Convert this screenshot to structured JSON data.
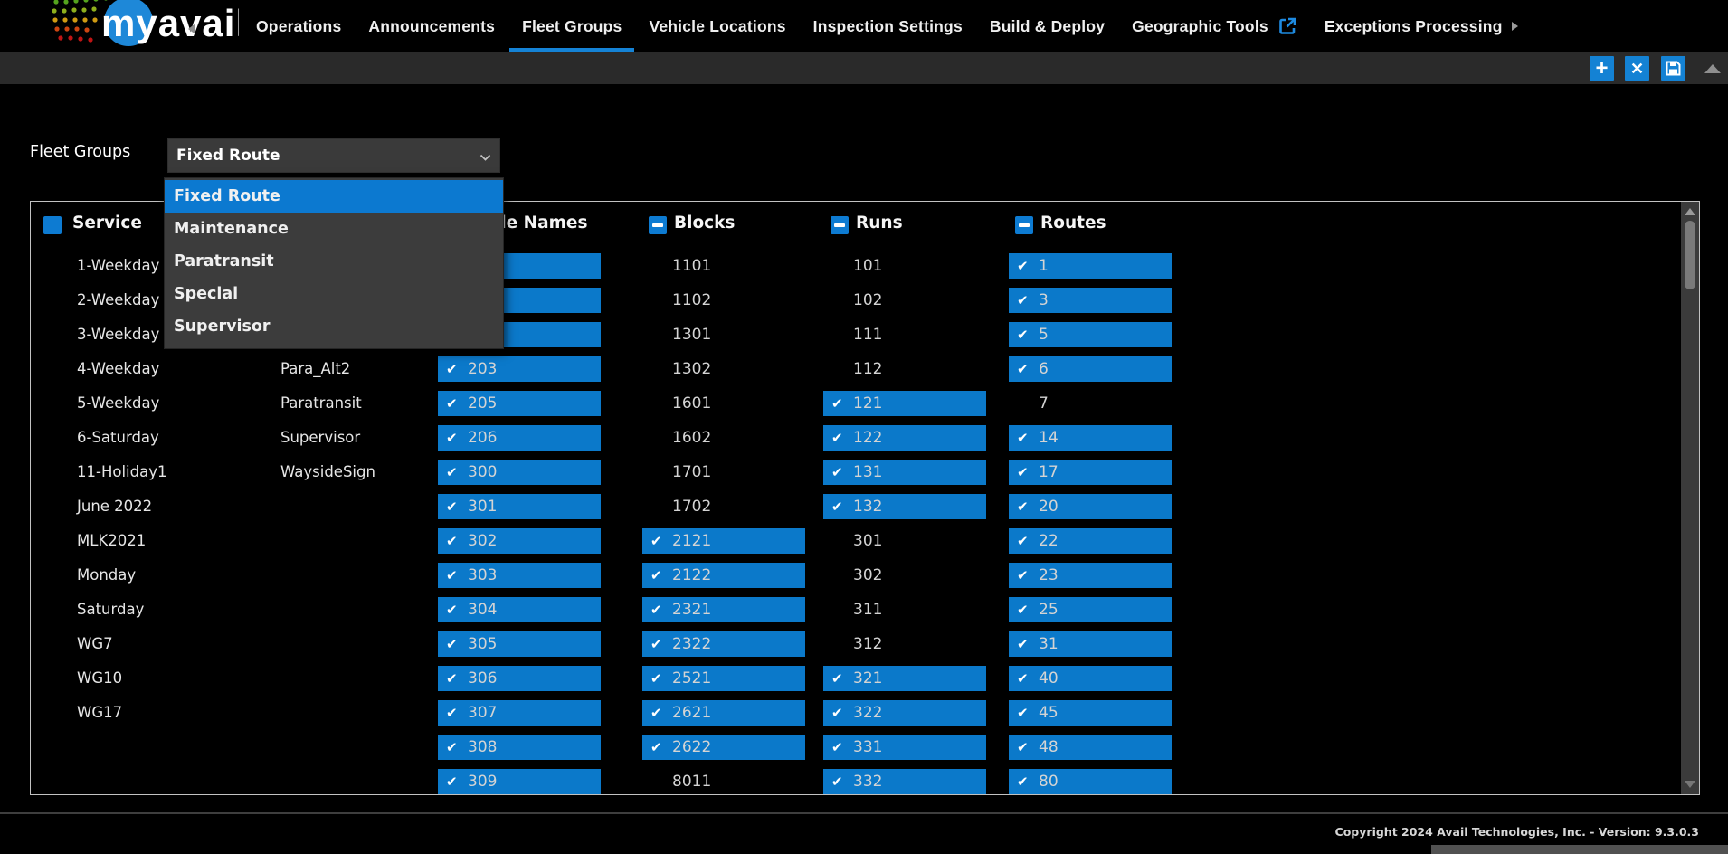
{
  "brand": {
    "logo_text": "myavail"
  },
  "nav": {
    "items": [
      {
        "label": "Operations"
      },
      {
        "label": "Announcements"
      },
      {
        "label": "Fleet Groups",
        "active": true
      },
      {
        "label": "Vehicle Locations"
      },
      {
        "label": "Inspection Settings"
      },
      {
        "label": "Build & Deploy"
      },
      {
        "label": "Geographic Tools",
        "external_link_icon": true
      },
      {
        "label": "Exceptions Processing",
        "submenu_arrow": true
      }
    ]
  },
  "toolbar": {
    "add_label": "+",
    "delete_label": "✕",
    "save_icon": "floppy-disk"
  },
  "fleet_groups": {
    "label": "Fleet Groups",
    "selected": "Fixed Route",
    "highlighted_option": "Fixed Route",
    "options": [
      "Fixed Route",
      "Maintenance",
      "Paratransit",
      "Special",
      "Supervisor"
    ]
  },
  "table": {
    "headers": [
      {
        "label": "Service",
        "checkbox": "checked"
      },
      {
        "label": "Vehicle Names",
        "checkbox": "checked"
      },
      {
        "label": "Blocks",
        "checkbox": "indeterminate"
      },
      {
        "label": "Runs",
        "checkbox": "indeterminate"
      },
      {
        "label": "Routes",
        "checkbox": "indeterminate"
      }
    ],
    "service_names": [
      "1-Weekday",
      "2-Weekday",
      "3-Weekday",
      "4-Weekday",
      "5-Weekday",
      "6-Saturday",
      "11-Holiday1",
      "June 2022",
      "MLK2021",
      "Monday",
      "Saturday",
      "WG7",
      "WG10",
      "WG17"
    ],
    "vehicle_names": [
      "",
      "",
      "",
      "Para_Alt2",
      "Paratransit",
      "Supervisor",
      "WaysideSign"
    ],
    "vehicle_numbers": [
      {
        "v": "",
        "sel": true
      },
      {
        "v": "",
        "sel": true
      },
      {
        "v": "",
        "sel": true
      },
      {
        "v": "203",
        "sel": true
      },
      {
        "v": "205",
        "sel": true
      },
      {
        "v": "206",
        "sel": true
      },
      {
        "v": "300",
        "sel": true
      },
      {
        "v": "301",
        "sel": true
      },
      {
        "v": "302",
        "sel": true
      },
      {
        "v": "303",
        "sel": true
      },
      {
        "v": "304",
        "sel": true
      },
      {
        "v": "305",
        "sel": true
      },
      {
        "v": "306",
        "sel": true
      },
      {
        "v": "307",
        "sel": true
      },
      {
        "v": "308",
        "sel": true
      },
      {
        "v": "309",
        "sel": true
      }
    ],
    "blocks": [
      {
        "v": "1101",
        "sel": false
      },
      {
        "v": "1102",
        "sel": false
      },
      {
        "v": "1301",
        "sel": false
      },
      {
        "v": "1302",
        "sel": false
      },
      {
        "v": "1601",
        "sel": false
      },
      {
        "v": "1602",
        "sel": false
      },
      {
        "v": "1701",
        "sel": false
      },
      {
        "v": "1702",
        "sel": false
      },
      {
        "v": "2121",
        "sel": true
      },
      {
        "v": "2122",
        "sel": true
      },
      {
        "v": "2321",
        "sel": true
      },
      {
        "v": "2322",
        "sel": true
      },
      {
        "v": "2521",
        "sel": true
      },
      {
        "v": "2621",
        "sel": true
      },
      {
        "v": "2622",
        "sel": true
      },
      {
        "v": "8011",
        "sel": false
      }
    ],
    "runs": [
      {
        "v": "101",
        "sel": false
      },
      {
        "v": "102",
        "sel": false
      },
      {
        "v": "111",
        "sel": false
      },
      {
        "v": "112",
        "sel": false
      },
      {
        "v": "121",
        "sel": true
      },
      {
        "v": "122",
        "sel": true
      },
      {
        "v": "131",
        "sel": true
      },
      {
        "v": "132",
        "sel": true
      },
      {
        "v": "301",
        "sel": false
      },
      {
        "v": "302",
        "sel": false
      },
      {
        "v": "311",
        "sel": false
      },
      {
        "v": "312",
        "sel": false
      },
      {
        "v": "321",
        "sel": true
      },
      {
        "v": "322",
        "sel": true
      },
      {
        "v": "331",
        "sel": true
      },
      {
        "v": "332",
        "sel": true
      }
    ],
    "routes": [
      {
        "v": "1",
        "sel": true
      },
      {
        "v": "3",
        "sel": true
      },
      {
        "v": "5",
        "sel": true
      },
      {
        "v": "6",
        "sel": true
      },
      {
        "v": "7",
        "sel": false
      },
      {
        "v": "14",
        "sel": true
      },
      {
        "v": "17",
        "sel": true
      },
      {
        "v": "20",
        "sel": true
      },
      {
        "v": "22",
        "sel": true
      },
      {
        "v": "23",
        "sel": true
      },
      {
        "v": "25",
        "sel": true
      },
      {
        "v": "31",
        "sel": true
      },
      {
        "v": "40",
        "sel": true
      },
      {
        "v": "45",
        "sel": true
      },
      {
        "v": "48",
        "sel": true
      },
      {
        "v": "80",
        "sel": true
      }
    ]
  },
  "footer": {
    "copyright": "Copyright 2024 Avail Technologies, Inc. - Version: 9.3.0.3"
  },
  "colors": {
    "accent_blue": "#0d7bd2",
    "selected_cell_blue": "#0b79ca",
    "nav_underline_blue": "#1583d6",
    "dropdown_bg": "#3c3c3c",
    "toolbar_bg": "#2a2a2a"
  }
}
